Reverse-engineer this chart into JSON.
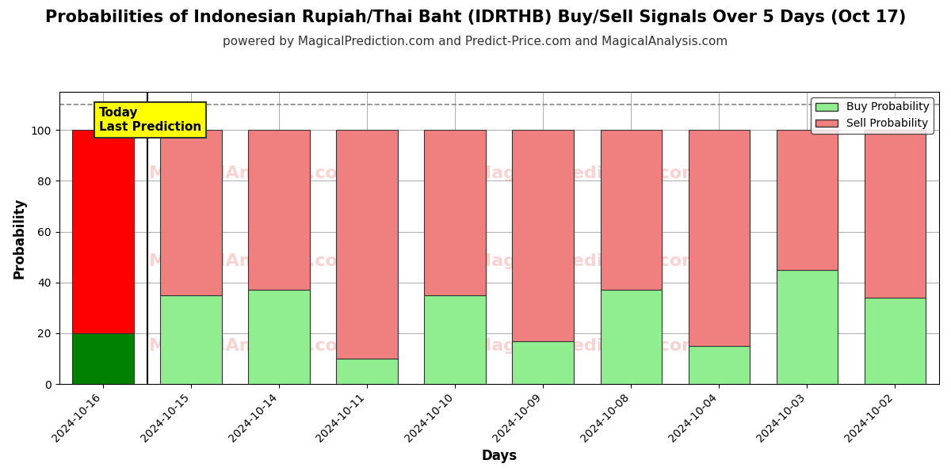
{
  "title": "Probabilities of Indonesian Rupiah/Thai Baht (IDRTHB) Buy/Sell Signals Over 5 Days (Oct 17)",
  "subtitle": "powered by MagicalPrediction.com and Predict-Price.com and MagicalAnalysis.com",
  "xlabel": "Days",
  "ylabel": "Probability",
  "categories": [
    "2024-10-16",
    "2024-10-15",
    "2024-10-14",
    "2024-10-11",
    "2024-10-10",
    "2024-10-09",
    "2024-10-08",
    "2024-10-04",
    "2024-10-03",
    "2024-10-02"
  ],
  "buy_values": [
    20,
    35,
    37,
    10,
    35,
    17,
    37,
    15,
    45,
    34
  ],
  "sell_values": [
    80,
    65,
    63,
    90,
    65,
    83,
    63,
    85,
    55,
    66
  ],
  "first_bar_buy_color": "#008000",
  "first_bar_sell_color": "#ff0000",
  "other_buy_color": "#90ee90",
  "other_sell_color": "#f08080",
  "bar_edge_color": "#333333",
  "ylim": [
    0,
    115
  ],
  "yticks": [
    0,
    20,
    40,
    60,
    80,
    100
  ],
  "dashed_line_y": 110,
  "watermark_color": "#f08080",
  "watermark_alpha": 0.35,
  "today_box_text": "Today\nLast Prediction",
  "today_box_facecolor": "#ffff00",
  "today_box_edgecolor": "#333333",
  "legend_buy_label": "Buy Probability",
  "legend_sell_label": "Sell Probability",
  "bg_color": "#ffffff",
  "grid_color": "#aaaaaa",
  "title_fontsize": 15,
  "subtitle_fontsize": 11,
  "label_fontsize": 12
}
